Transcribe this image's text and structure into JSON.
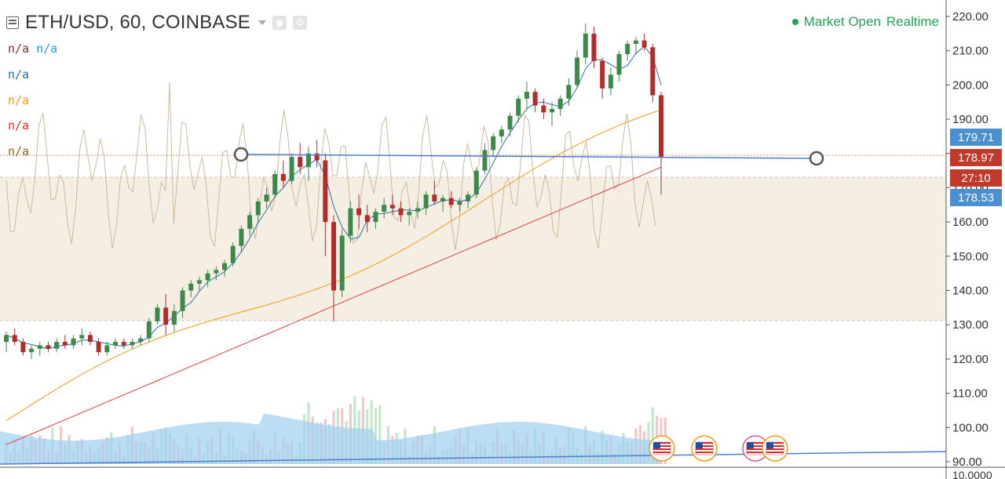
{
  "header": {
    "symbol_title": "ETH/USD, 60, COINBASE",
    "market_status": "Market Open",
    "realtime_label": "Realtime",
    "indicators": [
      {
        "values": [
          "n/a",
          "n/a"
        ],
        "colors": [
          "#8b2f2f",
          "#2196f3"
        ]
      },
      {
        "values": [
          "n/a"
        ],
        "colors": [
          "#2a6fa8"
        ]
      },
      {
        "values": [
          "n/a"
        ],
        "colors": [
          "#f39c12"
        ]
      },
      {
        "values": [
          "n/a"
        ],
        "colors": [
          "#d93030"
        ]
      },
      {
        "values": [
          "n/a"
        ],
        "colors": [
          "#8a6a1a"
        ]
      }
    ]
  },
  "price_tags": [
    {
      "label": "179.71",
      "color": "#4a8fd0"
    },
    {
      "label": "178.97",
      "color": "#c0392b"
    },
    {
      "label": "27:10",
      "color": "#c0392b"
    },
    {
      "label": "178.53",
      "color": "#4a8fd0"
    }
  ],
  "colors": {
    "up": "#3c8a4a",
    "down": "#b32b2b",
    "ma_fast": "#2a6fa8",
    "ma_mid": "#f39c12",
    "ma_slow": "#e03a3a",
    "rsi": "#cdb99c",
    "zone": "#f5efe3",
    "trendline": "#4a7fd0",
    "volume_ma": "#9fd0f0"
  },
  "chart_data": {
    "type": "candlestick",
    "title": "ETH/USD, 60, COINBASE",
    "ylim": [
      90,
      220
    ],
    "y_ticks": [
      "220.00",
      "210.00",
      "200.00",
      "190.00",
      "180.00",
      "170.00",
      "160.00",
      "150.00",
      "140.00",
      "130.00",
      "120.00",
      "110.00",
      "100.00",
      "90.00"
    ],
    "lower_pane_tick": "10.0000",
    "zone": [
      131,
      185
    ],
    "last_price": 178.97,
    "candles": [
      [
        125,
        128,
        122,
        127
      ],
      [
        127,
        129,
        124,
        125
      ],
      [
        125,
        126,
        121,
        122
      ],
      [
        122,
        124,
        120,
        123
      ],
      [
        123,
        125,
        121,
        124
      ],
      [
        124,
        125,
        122,
        123
      ],
      [
        123,
        126,
        122,
        125
      ],
      [
        125,
        127,
        123,
        124
      ],
      [
        124,
        127,
        123,
        126
      ],
      [
        126,
        129,
        124,
        127
      ],
      [
        127,
        128,
        124,
        125
      ],
      [
        125,
        126,
        121,
        122
      ],
      [
        122,
        125,
        121,
        124
      ],
      [
        124,
        126,
        123,
        125
      ],
      [
        125,
        126,
        123,
        124
      ],
      [
        124,
        126,
        123,
        125
      ],
      [
        125,
        127,
        124,
        126
      ],
      [
        126,
        132,
        125,
        131
      ],
      [
        131,
        136,
        130,
        135
      ],
      [
        135,
        139,
        127,
        130
      ],
      [
        130,
        136,
        128,
        134
      ],
      [
        134,
        141,
        132,
        140
      ],
      [
        140,
        143,
        138,
        142
      ],
      [
        142,
        144,
        140,
        143
      ],
      [
        143,
        146,
        141,
        145
      ],
      [
        145,
        147,
        143,
        146
      ],
      [
        146,
        149,
        144,
        148
      ],
      [
        148,
        154,
        147,
        153
      ],
      [
        153,
        159,
        151,
        158
      ],
      [
        158,
        163,
        156,
        162
      ],
      [
        162,
        167,
        160,
        166
      ],
      [
        166,
        170,
        164,
        168
      ],
      [
        168,
        175,
        167,
        174
      ],
      [
        174,
        178,
        170,
        172
      ],
      [
        172,
        180,
        171,
        179
      ],
      [
        179,
        183,
        174,
        176
      ],
      [
        176,
        182,
        172,
        180
      ],
      [
        180,
        184,
        176,
        178
      ],
      [
        178,
        180,
        150,
        160
      ],
      [
        160,
        162,
        131,
        140
      ],
      [
        140,
        158,
        138,
        156
      ],
      [
        156,
        166,
        154,
        164
      ],
      [
        164,
        168,
        158,
        162
      ],
      [
        162,
        165,
        157,
        160
      ],
      [
        160,
        164,
        158,
        163
      ],
      [
        163,
        167,
        161,
        165
      ],
      [
        165,
        168,
        162,
        164
      ],
      [
        164,
        166,
        160,
        162
      ],
      [
        162,
        164,
        159,
        163
      ],
      [
        163,
        166,
        161,
        164
      ],
      [
        164,
        169,
        162,
        168
      ],
      [
        168,
        172,
        165,
        166
      ],
      [
        166,
        168,
        163,
        167
      ],
      [
        167,
        169,
        164,
        165
      ],
      [
        165,
        167,
        163,
        166
      ],
      [
        166,
        169,
        164,
        168
      ],
      [
        168,
        176,
        167,
        175
      ],
      [
        175,
        183,
        174,
        181
      ],
      [
        181,
        186,
        179,
        185
      ],
      [
        185,
        188,
        183,
        187
      ],
      [
        187,
        192,
        185,
        191
      ],
      [
        191,
        197,
        189,
        196
      ],
      [
        196,
        201,
        193,
        198
      ],
      [
        198,
        199,
        192,
        194
      ],
      [
        194,
        196,
        190,
        192
      ],
      [
        192,
        195,
        188,
        193
      ],
      [
        193,
        197,
        191,
        196
      ],
      [
        196,
        202,
        194,
        200
      ],
      [
        200,
        210,
        199,
        208
      ],
      [
        208,
        218,
        206,
        215
      ],
      [
        215,
        217,
        205,
        207
      ],
      [
        207,
        208,
        196,
        199
      ],
      [
        199,
        205,
        197,
        203
      ],
      [
        203,
        210,
        201,
        209
      ],
      [
        209,
        213,
        207,
        212
      ],
      [
        212,
        214,
        209,
        213
      ],
      [
        213,
        215,
        210,
        211
      ],
      [
        211,
        212,
        195,
        197
      ],
      [
        197,
        198,
        168,
        179
      ]
    ],
    "series": [
      {
        "name": "Volume"
      },
      {
        "name": "RSI"
      }
    ]
  }
}
